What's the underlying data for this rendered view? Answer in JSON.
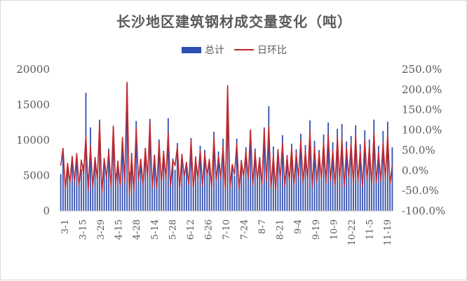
{
  "chart_data": {
    "type": "bar+line",
    "title": "长沙地区建筑钢材成交量变化（吨）",
    "legend": [
      "总计",
      "日环比"
    ],
    "legend_position": "top",
    "grid": false,
    "y_left": {
      "ticks": [
        "0",
        "5000",
        "10000",
        "15000",
        "20000"
      ],
      "range": [
        0,
        20000
      ]
    },
    "y_right": {
      "ticks": [
        "-100.0%",
        "-50.0%",
        "0.0%",
        "50.0%",
        "100.0%",
        "150.0%",
        "200.0%",
        "250.0%"
      ],
      "range": [
        -100,
        250
      ]
    },
    "x_tick_labels": [
      "3-1",
      "3-15",
      "3-29",
      "4-15",
      "4-28",
      "5-14",
      "5-28",
      "6-12",
      "6-26",
      "7-10",
      "7-24",
      "8-7",
      "8-21",
      "9-4",
      "9-19",
      "10-9",
      "10-22",
      "11-5",
      "11-19"
    ],
    "series": [
      {
        "name": "总计",
        "kind": "bar",
        "color": "#2f4fb0",
        "values": [
          5200,
          8100,
          3900,
          6400,
          4500,
          6800,
          4100,
          7200,
          3800,
          5900,
          6600,
          16700,
          5100,
          11800,
          4300,
          7600,
          4900,
          12900,
          3700,
          6800,
          5200,
          8800,
          4200,
          11900,
          5300,
          7100,
          4000,
          9800,
          4600,
          18000,
          5500,
          8200,
          3600,
          12700,
          4800,
          7300,
          4100,
          8900,
          5600,
          13000,
          4400,
          7800,
          3900,
          10100,
          4700,
          8500,
          5000,
          13100,
          4300,
          7400,
          5800,
          9600,
          4100,
          8000,
          5200,
          6900,
          4600,
          10300,
          3800,
          7700,
          5100,
          9200,
          4500,
          8600,
          5300,
          7000,
          4000,
          11200,
          4900,
          8400,
          5500,
          10200,
          4200,
          16000,
          4600,
          6000,
          5000,
          10200,
          3900,
          7200,
          4800,
          9000,
          5400,
          11500,
          4300,
          8800,
          5100,
          7600,
          4700,
          11800,
          5200,
          14800,
          4400,
          9100,
          3800,
          8300,
          5600,
          10700,
          4100,
          7900,
          5000,
          9500,
          4400,
          8700,
          5300,
          10900,
          4700,
          9300,
          5100,
          12800,
          4200,
          9900,
          4800,
          8600,
          5400,
          10800,
          4500,
          12500,
          5200,
          9700,
          4600,
          11600,
          5000,
          12300,
          4300,
          9800,
          5500,
          10600,
          4900,
          12100,
          5100,
          9400,
          4400,
          11400,
          5300,
          10100,
          4700,
          12900,
          5000,
          9200,
          4800,
          11300,
          5200,
          12600,
          4600,
          9000
        ]
      },
      {
        "name": "日环比",
        "kind": "line",
        "color": "#c0272d",
        "values": [
          12,
          55,
          -45,
          18,
          -30,
          35,
          -28,
          42,
          -38,
          26,
          -8,
          85,
          -50,
          60,
          -40,
          32,
          -22,
          118,
          -55,
          30,
          -18,
          48,
          -42,
          110,
          -35,
          22,
          -40,
          82,
          -30,
          218,
          -60,
          36,
          -48,
          105,
          -25,
          28,
          -35,
          55,
          -18,
          120,
          -42,
          38,
          -46,
          70,
          -28,
          45,
          -20,
          95,
          -40,
          25,
          12,
          58,
          -44,
          40,
          -15,
          20,
          -35,
          75,
          -42,
          30,
          -20,
          50,
          -38,
          42,
          -12,
          28,
          -40,
          82,
          -25,
          36,
          -18,
          60,
          -48,
          210,
          -42,
          15,
          -10,
          66,
          -46,
          22,
          -15,
          48,
          -20,
          100,
          -38,
          46,
          -22,
          30,
          -35,
          102,
          -28,
          110,
          -44,
          38,
          -48,
          52,
          -20,
          68,
          -40,
          35,
          -25,
          56,
          -35,
          42,
          -18,
          75,
          -30,
          48,
          -22,
          98,
          -42,
          58,
          -28,
          44,
          -20,
          70,
          -32,
          90,
          -26,
          50,
          -38,
          82,
          -24,
          78,
          -40,
          56,
          -18,
          66,
          -30,
          86,
          -28,
          48,
          -40,
          74,
          -22,
          60,
          -36,
          95,
          -30,
          44,
          -26,
          70,
          -20,
          88,
          -34,
          12
        ]
      }
    ]
  }
}
